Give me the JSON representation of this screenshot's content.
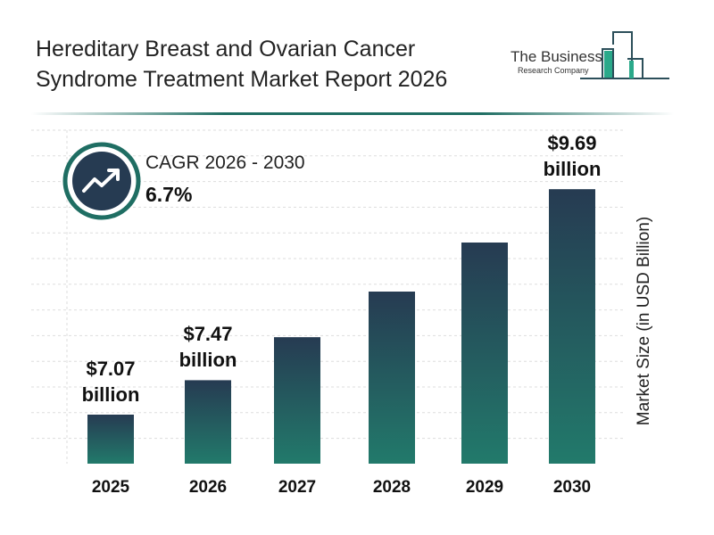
{
  "title": "Hereditary Breast and Ovarian Cancer Syndrome Treatment Market Report 2026",
  "logo": {
    "line1": "The Business",
    "line2": "Research Company"
  },
  "cagr": {
    "label": "CAGR 2026 - 2030",
    "value": "6.7%",
    "icon": "trend-up-icon"
  },
  "colors": {
    "bar_top": "#263b52",
    "bar_bottom": "#227a6b",
    "accent": "#1f6e63"
  },
  "chart_data": {
    "type": "bar",
    "title": "",
    "xlabel": "",
    "ylabel": "Market Size (in USD Billion)",
    "categories": [
      "2025",
      "2026",
      "2027",
      "2028",
      "2029",
      "2030"
    ],
    "values": [
      7.07,
      7.47,
      7.97,
      8.5,
      9.07,
      9.69
    ],
    "data_labels": [
      {
        "index": 0,
        "line1": "$7.07",
        "line2": "billion"
      },
      {
        "index": 1,
        "line1": "$7.47",
        "line2": "billion"
      },
      {
        "index": 5,
        "line1": "$9.69",
        "line2": "billion"
      }
    ],
    "grid": true,
    "legend": "none"
  }
}
